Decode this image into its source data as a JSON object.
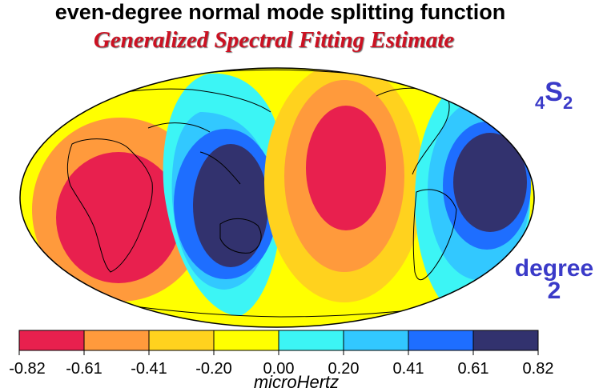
{
  "header": {
    "title": "even-degree normal mode splitting function",
    "subtitle": "Generalized Spectral Fitting Estimate"
  },
  "mode": {
    "n": "4",
    "letter": "S",
    "l": "2"
  },
  "degree": {
    "word": "degree",
    "value": "2"
  },
  "colorbar": {
    "unit": "microHertz",
    "ticks": [
      "-0.82",
      "-0.61",
      "-0.41",
      "-0.20",
      "0.00",
      "0.20",
      "0.41",
      "0.61",
      "0.82"
    ],
    "colors": [
      "#e8204e",
      "#ff9a3c",
      "#ffd21e",
      "#ffff00",
      "#3cf5f5",
      "#32c8ff",
      "#1e6eff",
      "#32326e"
    ]
  }
}
